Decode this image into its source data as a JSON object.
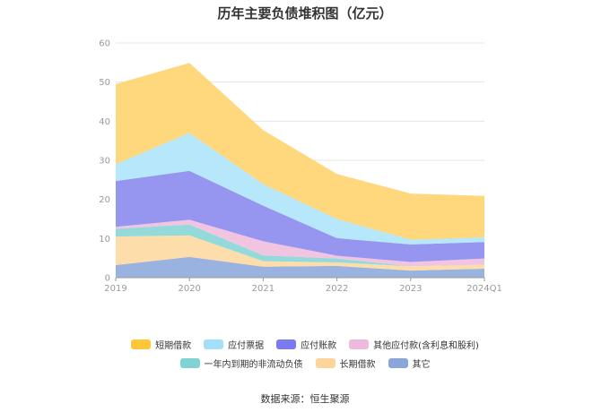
{
  "chart_data": {
    "type": "area",
    "stacked": true,
    "title": "历年主要负债堆积图（亿元）",
    "categories": [
      "2019",
      "2020",
      "2021",
      "2022",
      "2023",
      "2024Q1"
    ],
    "ylim": [
      0,
      60
    ],
    "yticks": [
      0,
      10,
      20,
      30,
      40,
      50,
      60
    ],
    "grid": true,
    "legend_position": "bottom",
    "series": [
      {
        "name": "其它",
        "color": "#8eaadc",
        "values": [
          3.2,
          5.3,
          2.8,
          3.0,
          1.8,
          2.3
        ]
      },
      {
        "name": "长期借款",
        "color": "#fdd9a0",
        "values": [
          7.3,
          5.5,
          1.4,
          0.9,
          1.1,
          1.0
        ]
      },
      {
        "name": "一年内到期的非流动负债",
        "color": "#8ad6d6",
        "values": [
          2.0,
          2.8,
          1.5,
          1.0,
          0.0,
          0.0
        ]
      },
      {
        "name": "其他应付款(含利息和股利)",
        "color": "#f0bedf",
        "values": [
          0.5,
          1.2,
          3.6,
          0.7,
          1.1,
          1.6
        ]
      },
      {
        "name": "应付账款",
        "color": "#8b8bf0",
        "values": [
          11.7,
          12.5,
          9.1,
          4.5,
          4.5,
          4.2
        ]
      },
      {
        "name": "应付票据",
        "color": "#aee4fa",
        "values": [
          4.3,
          9.7,
          5.5,
          4.9,
          1.2,
          1.2
        ]
      },
      {
        "name": "短期借款",
        "color": "#ffd36e",
        "values": [
          20.5,
          17.9,
          13.8,
          11.5,
          11.8,
          10.6
        ]
      }
    ]
  },
  "legend_rows": [
    [
      "短期借款",
      "应付票据",
      "应付账款",
      "其他应付款(含利息和股利)"
    ],
    [
      "一年内到期的非流动负债",
      "长期借款",
      "其它"
    ]
  ],
  "legend_colors": {
    "短期借款": "#ffc63a",
    "应付票据": "#a3dff8",
    "应付账款": "#7b7bef",
    "其他应付款(含利息和股利)": "#eebadc",
    "一年内到期的非流动负债": "#7fd3d3",
    "长期借款": "#fdd49a",
    "其它": "#8aa6d8"
  },
  "source": "数据来源：恒生聚源"
}
